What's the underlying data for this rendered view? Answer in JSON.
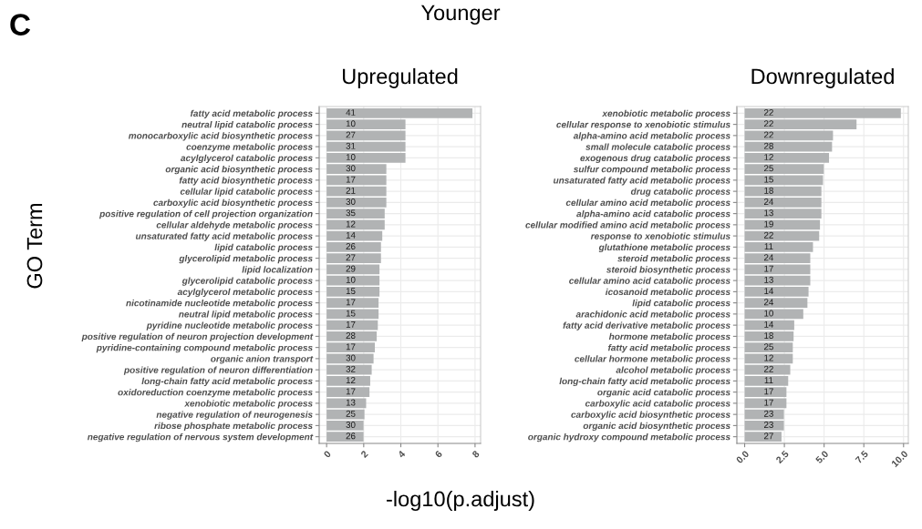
{
  "chart_data": [
    {
      "type": "bar",
      "orientation": "horizontal",
      "title": "Upregulated",
      "ylabel": "GO Term",
      "xlabel": "-log10(p.adjust)",
      "grid": true,
      "color": "#b1b3b4",
      "categories": [
        "fatty acid metabolic process",
        "neutral lipid catabolic process",
        "monocarboxylic acid biosynthetic process",
        "coenzyme metabolic process",
        "acylglycerol catabolic process",
        "organic acid biosynthetic process",
        "fatty acid biosynthetic process",
        "cellular lipid catabolic process",
        "carboxylic acid biosynthetic process",
        "positive regulation of cell projection organization",
        "cellular aldehyde metabolic process",
        "unsaturated fatty acid metabolic process",
        "lipid catabolic process",
        "glycerolipid metabolic process",
        "lipid localization",
        "glycerolipid catabolic process",
        "acylglycerol metabolic process",
        "nicotinamide nucleotide metabolic process",
        "neutral lipid metabolic process",
        "pyridine nucleotide metabolic process",
        "positive regulation of neuron projection development",
        "pyridine-containing compound metabolic process",
        "organic anion transport",
        "positive regulation of neuron differentiation",
        "long-chain fatty acid metabolic process",
        "oxidoreduction coenzyme metabolic process",
        "xenobiotic metabolic process",
        "negative regulation of neurogenesis",
        "ribose phosphate metabolic process",
        "negative regulation of nervous system development"
      ],
      "values": [
        7.86,
        4.25,
        4.25,
        4.25,
        4.25,
        3.22,
        3.22,
        3.22,
        3.22,
        3.13,
        3.13,
        3.0,
        2.93,
        2.93,
        2.85,
        2.85,
        2.85,
        2.8,
        2.8,
        2.76,
        2.7,
        2.6,
        2.53,
        2.43,
        2.35,
        2.31,
        2.13,
        2.04,
        1.99,
        1.99
      ],
      "annotations": [
        "C",
        "Younger",
        "41",
        "10",
        "27",
        "31",
        "10",
        "30",
        "17",
        "21",
        "30",
        "35",
        "12",
        "14",
        "26",
        "27",
        "29",
        "10",
        "15",
        "17",
        "15",
        "17",
        "28",
        "17",
        "30",
        "32",
        "12",
        "17",
        "13",
        "25",
        "30",
        "26"
      ],
      "xlim": [
        -0.4,
        8.3
      ],
      "xticks": [
        0,
        2,
        4,
        6,
        8
      ]
    },
    {
      "type": "bar",
      "orientation": "horizontal",
      "title": "Downregulated",
      "grid": true,
      "color": "#b1b3b4",
      "categories": [
        "xenobiotic metabolic process",
        "cellular response to xenobiotic stimulus",
        "alpha-amino acid metabolic process",
        "small molecule catabolic process",
        "exogenous drug catabolic process",
        "sulfur compound metabolic process",
        "unsaturated fatty acid metabolic process",
        "drug catabolic process",
        "cellular amino acid metabolic process",
        "alpha-amino acid catabolic process",
        "cellular modified amino acid metabolic process",
        "response to xenobiotic stimulus",
        "glutathione metabolic process",
        "steroid metabolic process",
        "steroid biosynthetic process",
        "cellular amino acid catabolic process",
        "icosanoid metabolic process",
        "lipid catabolic process",
        "arachidonic acid metabolic process",
        "fatty acid derivative metabolic process",
        "hormone metabolic process",
        "fatty acid metabolic process",
        "cellular hormone metabolic process",
        "alcohol metabolic process",
        "long-chain fatty acid metabolic process",
        "organic acid catabolic process",
        "carboxylic acid catabolic process",
        "carboxylic acid biosynthetic process",
        "organic acid biosynthetic process",
        "organic hydroxy compound metabolic process"
      ],
      "values": [
        9.83,
        7.04,
        5.56,
        5.5,
        5.31,
        4.98,
        4.93,
        4.83,
        4.83,
        4.83,
        4.74,
        4.69,
        4.3,
        4.13,
        4.13,
        4.13,
        4.02,
        3.95,
        3.69,
        3.12,
        3.08,
        3.03,
        3.03,
        2.87,
        2.74,
        2.63,
        2.63,
        2.47,
        2.47,
        2.32
      ],
      "annotations": [
        "22",
        "22",
        "22",
        "28",
        "12",
        "25",
        "15",
        "18",
        "24",
        "13",
        "19",
        "22",
        "11",
        "24",
        "17",
        "13",
        "14",
        "24",
        "10",
        "14",
        "18",
        "25",
        "12",
        "22",
        "11",
        "17",
        "17",
        "23",
        "23",
        "27"
      ],
      "xlim": [
        -0.49,
        10.3
      ],
      "xticks": [
        {
          "value": 0,
          "label": "0.0"
        },
        {
          "value": 2.5,
          "label": "2.5"
        },
        {
          "value": 5,
          "label": "5.0"
        },
        {
          "value": 7.5,
          "label": "7.5"
        },
        {
          "value": 10,
          "label": "10.0"
        }
      ]
    }
  ]
}
